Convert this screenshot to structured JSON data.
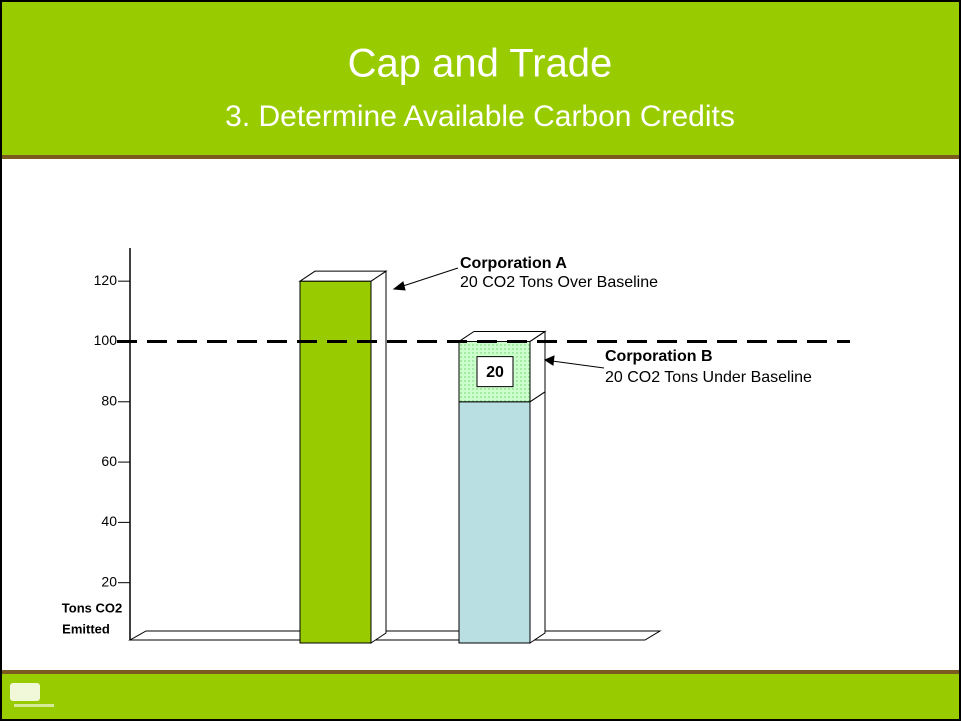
{
  "chart_data": {
    "type": "bar3d",
    "title": "Cap and Trade",
    "subtitle": "3. Determine Available Carbon Credits",
    "y_label": [
      "Tons CO2",
      "Emitted"
    ],
    "categories": [
      null,
      null
    ],
    "series": [
      {
        "colors": [
          "#99cc00",
          "#b9dfe3"
        ],
        "values": [
          120,
          80
        ]
      },
      {
        "color": "#ccffcc",
        "values": [
          null,
          20
        ]
      }
    ],
    "baseline": 100,
    "annotations": [
      {
        "title": "Corporation A",
        "text": "20 CO2 Tons Over Baseline"
      },
      {
        "title": "Corporation B",
        "text": "20 CO2 Tons Under Baseline"
      }
    ],
    "ylim": [
      0,
      131
    ],
    "yticks": [
      20,
      40,
      60,
      80,
      100,
      120
    ]
  }
}
